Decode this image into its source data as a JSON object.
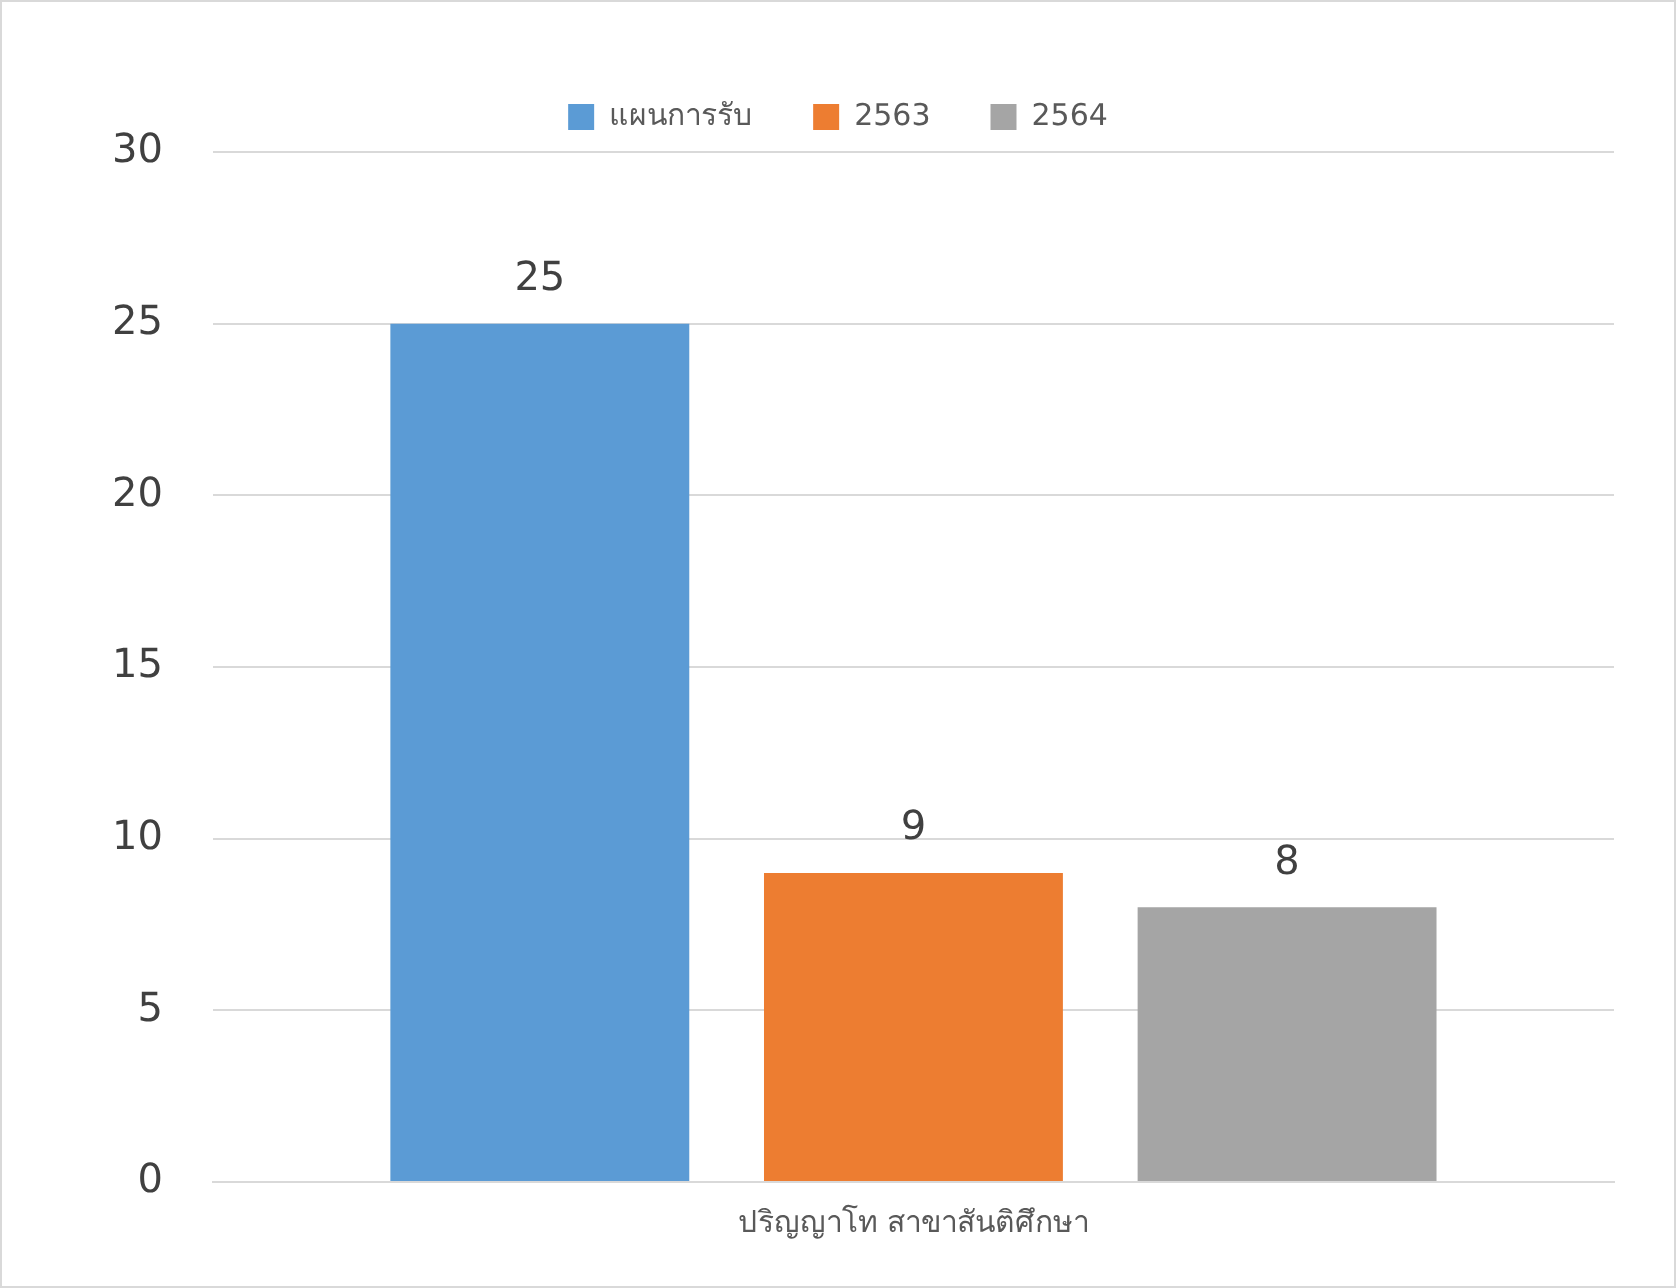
{
  "chart_data": {
    "type": "bar",
    "categories": [
      "ปริญญาโท สาขาสันติศึกษา"
    ],
    "series": [
      {
        "name": "แผนการรับ",
        "color": "#5b9bd5",
        "values": [
          25
        ]
      },
      {
        "name": "2563",
        "color": "#ed7d31",
        "values": [
          9
        ]
      },
      {
        "name": "2564",
        "color": "#a5a5a5",
        "values": [
          8
        ]
      }
    ],
    "ylim": [
      0,
      30
    ],
    "yticks": [
      0,
      5,
      10,
      15,
      20,
      25,
      30
    ],
    "grid": "y",
    "legend": "top",
    "data_labels": true
  }
}
